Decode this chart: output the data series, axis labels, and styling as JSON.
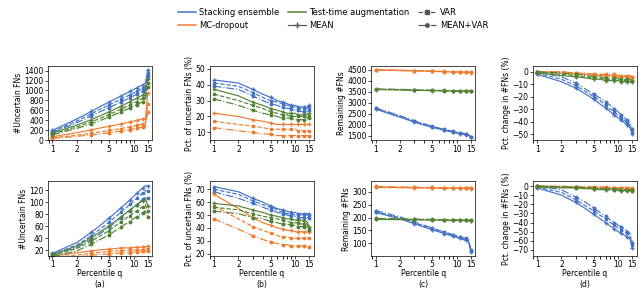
{
  "x": [
    1,
    2,
    3,
    4,
    5,
    6,
    7,
    8,
    9,
    10,
    11,
    12,
    13,
    14,
    15
  ],
  "colors": {
    "blue": "#4472C4",
    "orange": "#ED7D31",
    "green": "#548235"
  },
  "top_a": {
    "ylabel": "#Uncertain FNs",
    "ylim": [
      0,
      1500
    ],
    "yticks": [
      0,
      200,
      400,
      600,
      800,
      1000,
      1200,
      1400
    ],
    "blue_mean": [
      200,
      430,
      580,
      690,
      770,
      835,
      890,
      938,
      980,
      1020,
      1055,
      1085,
      1115,
      1145,
      1420
    ],
    "blue_var": [
      175,
      390,
      530,
      635,
      710,
      773,
      825,
      872,
      913,
      950,
      985,
      1015,
      1043,
      1072,
      1355
    ],
    "blue_meanvar": [
      155,
      355,
      485,
      585,
      658,
      718,
      770,
      815,
      855,
      892,
      925,
      954,
      982,
      1010,
      1285
    ],
    "orange_mean": [
      75,
      155,
      210,
      252,
      282,
      308,
      330,
      350,
      368,
      385,
      400,
      415,
      430,
      445,
      940
    ],
    "orange_var": [
      50,
      105,
      144,
      174,
      198,
      218,
      237,
      254,
      270,
      286,
      300,
      313,
      326,
      339,
      720
    ],
    "orange_meanvar": [
      40,
      80,
      110,
      133,
      153,
      170,
      186,
      201,
      215,
      229,
      242,
      254,
      266,
      278,
      565
    ],
    "green_mean": [
      148,
      305,
      415,
      503,
      572,
      632,
      685,
      732,
      774,
      812,
      847,
      880,
      912,
      943,
      1235
    ],
    "green_var": [
      128,
      270,
      370,
      452,
      518,
      574,
      624,
      668,
      709,
      745,
      779,
      811,
      841,
      871,
      1155
    ],
    "green_meanvar": [
      110,
      240,
      330,
      407,
      470,
      523,
      570,
      612,
      650,
      685,
      717,
      747,
      776,
      804,
      1070
    ]
  },
  "top_b": {
    "ylabel": "Pct. of uncertain FNs (%)",
    "ylim": [
      5,
      52
    ],
    "yticks": [
      10,
      20,
      30,
      40,
      50
    ],
    "blue_mean": [
      43,
      41,
      37,
      34,
      32,
      30,
      29,
      28,
      27,
      27,
      26,
      26,
      26,
      26,
      27
    ],
    "blue_var": [
      41,
      39,
      35,
      32,
      30,
      29,
      28,
      27,
      26,
      26,
      25,
      25,
      25,
      25,
      26
    ],
    "blue_meanvar": [
      39,
      37,
      33,
      30,
      28,
      27,
      26,
      25,
      25,
      24,
      24,
      23,
      23,
      23,
      24
    ],
    "orange_mean": [
      22,
      20,
      18,
      17,
      16,
      15,
      15,
      15,
      15,
      15,
      15,
      15,
      15,
      15,
      15
    ],
    "orange_var": [
      17,
      15,
      14,
      13,
      12,
      12,
      12,
      12,
      12,
      12,
      11,
      11,
      11,
      11,
      11
    ],
    "orange_meanvar": [
      13,
      11,
      10,
      9,
      9,
      8,
      8,
      8,
      8,
      8,
      8,
      8,
      8,
      8,
      8
    ],
    "green_mean": [
      37,
      33,
      29,
      27,
      25,
      24,
      23,
      22,
      22,
      22,
      21,
      21,
      21,
      21,
      22
    ],
    "green_var": [
      34,
      30,
      27,
      25,
      23,
      22,
      21,
      21,
      20,
      20,
      20,
      20,
      20,
      19,
      20
    ],
    "green_meanvar": [
      31,
      27,
      24,
      22,
      21,
      20,
      19,
      19,
      19,
      18,
      18,
      18,
      18,
      18,
      19
    ]
  },
  "top_c": {
    "ylabel": "Remaining #FNs",
    "ylim": [
      1300,
      4700
    ],
    "yticks": [
      1500,
      2000,
      2500,
      3000,
      3500,
      4000,
      4500
    ],
    "blue_mean": [
      2720,
      2350,
      2130,
      1990,
      1890,
      1820,
      1760,
      1710,
      1670,
      1635,
      1608,
      1582,
      1558,
      1535,
      1430
    ],
    "blue_var": [
      2750,
      2390,
      2165,
      2020,
      1915,
      1843,
      1780,
      1730,
      1690,
      1655,
      1628,
      1602,
      1578,
      1555,
      1450
    ],
    "blue_meanvar": [
      2780,
      2420,
      2195,
      2048,
      1940,
      1865,
      1800,
      1750,
      1710,
      1675,
      1648,
      1622,
      1598,
      1575,
      1470
    ],
    "orange_mean": [
      4490,
      4470,
      4455,
      4445,
      4435,
      4427,
      4420,
      4415,
      4410,
      4405,
      4400,
      4396,
      4392,
      4388,
      4384
    ],
    "orange_var": [
      4500,
      4480,
      4465,
      4453,
      4443,
      4435,
      4427,
      4421,
      4416,
      4411,
      4406,
      4402,
      4398,
      4394,
      4390
    ],
    "orange_meanvar": [
      4510,
      4490,
      4473,
      4460,
      4450,
      4440,
      4432,
      4425,
      4420,
      4414,
      4409,
      4405,
      4400,
      4396,
      4392
    ],
    "green_mean": [
      3610,
      3590,
      3575,
      3565,
      3558,
      3552,
      3548,
      3544,
      3540,
      3537,
      3534,
      3532,
      3530,
      3528,
      3526
    ],
    "green_var": [
      3625,
      3605,
      3590,
      3578,
      3570,
      3563,
      3558,
      3553,
      3549,
      3546,
      3543,
      3540,
      3538,
      3536,
      3534
    ],
    "green_meanvar": [
      3640,
      3618,
      3602,
      3590,
      3581,
      3574,
      3568,
      3563,
      3559,
      3555,
      3552,
      3549,
      3547,
      3545,
      3542
    ]
  },
  "top_d": {
    "ylabel": "Pct. change in #FNs (%)",
    "ylim": [
      -55,
      5
    ],
    "yticks": [
      0,
      -10,
      -20,
      -30,
      -40,
      -50
    ],
    "blue_mean": [
      -2,
      -8,
      -13,
      -18,
      -22,
      -26,
      -29,
      -32,
      -35,
      -37,
      -39,
      -41,
      -43,
      -45,
      -50
    ],
    "blue_var": [
      -1,
      -6,
      -11,
      -16,
      -20,
      -23,
      -27,
      -30,
      -32,
      -35,
      -37,
      -39,
      -41,
      -43,
      -48
    ],
    "blue_meanvar": [
      0,
      -4,
      -9,
      -14,
      -18,
      -21,
      -24,
      -27,
      -30,
      -32,
      -35,
      -37,
      -39,
      -41,
      -46
    ],
    "orange_mean": [
      0,
      -1,
      -2,
      -2,
      -3,
      -3,
      -3,
      -3,
      -4,
      -4,
      -4,
      -4,
      -4,
      -4,
      -5
    ],
    "orange_var": [
      0,
      0,
      -1,
      -2,
      -2,
      -2,
      -3,
      -3,
      -3,
      -3,
      -3,
      -3,
      -4,
      -4,
      -4
    ],
    "orange_meanvar": [
      0,
      0,
      -1,
      -1,
      -2,
      -2,
      -2,
      -2,
      -2,
      -3,
      -3,
      -3,
      -3,
      -3,
      -4
    ],
    "green_mean": [
      -1,
      -3,
      -4,
      -5,
      -6,
      -6,
      -7,
      -7,
      -7,
      -7,
      -8,
      -8,
      -8,
      -8,
      -8
    ],
    "green_var": [
      0,
      -2,
      -3,
      -4,
      -5,
      -5,
      -6,
      -6,
      -6,
      -6,
      -7,
      -7,
      -7,
      -7,
      -7
    ],
    "green_meanvar": [
      0,
      -1,
      -2,
      -3,
      -4,
      -4,
      -5,
      -5,
      -5,
      -5,
      -6,
      -6,
      -6,
      -6,
      -7
    ]
  },
  "bot_a": {
    "ylabel": "#Uncertain FNs",
    "ylim": [
      10,
      135
    ],
    "yticks": [
      20,
      40,
      60,
      80,
      100,
      120
    ],
    "blue_mean": [
      15,
      33,
      50,
      63,
      74,
      83,
      91,
      98,
      104,
      110,
      115,
      120,
      124,
      128,
      127
    ],
    "blue_var": [
      13,
      29,
      44,
      57,
      67,
      76,
      84,
      90,
      97,
      102,
      107,
      112,
      116,
      120,
      119
    ],
    "blue_meanvar": [
      11,
      25,
      38,
      49,
      59,
      67,
      74,
      81,
      86,
      92,
      96,
      101,
      105,
      109,
      108
    ],
    "orange_mean": [
      10,
      16,
      19,
      21,
      22,
      23,
      24,
      24,
      24,
      25,
      25,
      25,
      26,
      26,
      27
    ],
    "orange_var": [
      8,
      12,
      15,
      17,
      18,
      19,
      19,
      20,
      20,
      20,
      21,
      21,
      21,
      22,
      22
    ],
    "orange_meanvar": [
      6,
      9,
      12,
      13,
      14,
      15,
      15,
      16,
      16,
      17,
      17,
      17,
      18,
      18,
      18
    ],
    "green_mean": [
      13,
      27,
      41,
      52,
      61,
      69,
      76,
      82,
      87,
      92,
      96,
      100,
      103,
      107,
      94
    ],
    "green_var": [
      11,
      23,
      35,
      45,
      53,
      61,
      67,
      73,
      78,
      82,
      86,
      90,
      93,
      96,
      85
    ],
    "green_meanvar": [
      9,
      19,
      30,
      39,
      46,
      53,
      59,
      64,
      68,
      73,
      76,
      80,
      83,
      86,
      76
    ]
  },
  "bot_b": {
    "ylabel": "Pct. of uncertain FNs (%)",
    "ylim": [
      18,
      76
    ],
    "yticks": [
      20,
      30,
      40,
      50,
      60,
      70
    ],
    "blue_mean": [
      72,
      68,
      63,
      60,
      57,
      55,
      54,
      53,
      52,
      52,
      51,
      51,
      51,
      51,
      51
    ],
    "blue_var": [
      70,
      66,
      61,
      58,
      56,
      54,
      52,
      51,
      51,
      50,
      50,
      50,
      50,
      50,
      50
    ],
    "blue_meanvar": [
      68,
      63,
      59,
      56,
      54,
      52,
      51,
      50,
      49,
      49,
      48,
      48,
      48,
      48,
      48
    ],
    "orange_mean": [
      66,
      55,
      48,
      44,
      42,
      40,
      39,
      38,
      38,
      37,
      37,
      37,
      37,
      37,
      37
    ],
    "orange_var": [
      57,
      47,
      41,
      38,
      36,
      34,
      33,
      33,
      32,
      32,
      32,
      32,
      32,
      32,
      32
    ],
    "orange_meanvar": [
      47,
      39,
      34,
      31,
      29,
      28,
      27,
      27,
      26,
      26,
      26,
      26,
      26,
      26,
      25
    ],
    "green_mean": [
      59,
      57,
      54,
      52,
      50,
      49,
      48,
      47,
      47,
      46,
      46,
      46,
      45,
      45,
      41
    ],
    "green_var": [
      56,
      54,
      51,
      49,
      48,
      47,
      46,
      45,
      44,
      44,
      44,
      43,
      43,
      43,
      39
    ],
    "green_meanvar": [
      53,
      51,
      48,
      47,
      45,
      44,
      43,
      43,
      42,
      42,
      41,
      41,
      41,
      41,
      38
    ]
  },
  "bot_c": {
    "ylabel": "Remaining #FNs",
    "ylim": [
      50,
      340
    ],
    "yticks": [
      100,
      150,
      200,
      250,
      300
    ],
    "blue_mean": [
      220,
      195,
      176,
      163,
      153,
      145,
      138,
      133,
      128,
      123,
      119,
      115,
      112,
      108,
      68
    ],
    "blue_var": [
      223,
      199,
      180,
      167,
      157,
      149,
      142,
      136,
      131,
      127,
      123,
      119,
      116,
      112,
      72
    ],
    "blue_meanvar": [
      227,
      203,
      183,
      170,
      160,
      151,
      145,
      139,
      134,
      130,
      126,
      122,
      119,
      115,
      75
    ],
    "orange_mean": [
      317,
      316,
      315,
      315,
      315,
      314,
      314,
      314,
      314,
      313,
      313,
      313,
      313,
      313,
      312
    ],
    "orange_var": [
      319,
      317,
      317,
      316,
      316,
      315,
      315,
      315,
      315,
      314,
      314,
      314,
      314,
      314,
      313
    ],
    "orange_meanvar": [
      321,
      319,
      318,
      317,
      317,
      316,
      316,
      316,
      316,
      315,
      315,
      315,
      315,
      315,
      314
    ],
    "green_mean": [
      193,
      192,
      191,
      191,
      190,
      190,
      190,
      189,
      189,
      189,
      189,
      189,
      189,
      188,
      188
    ],
    "green_var": [
      195,
      194,
      193,
      192,
      192,
      192,
      191,
      191,
      191,
      190,
      190,
      190,
      190,
      190,
      189
    ],
    "green_meanvar": [
      197,
      195,
      194,
      194,
      193,
      193,
      192,
      192,
      192,
      191,
      191,
      191,
      191,
      190,
      190
    ]
  },
  "bot_d": {
    "ylabel": "Pct. change in #FNs (%)",
    "ylim": [
      -77,
      5
    ],
    "yticks": [
      0,
      -10,
      -20,
      -30,
      -40,
      -50,
      -60,
      -70
    ],
    "blue_mean": [
      -2,
      -10,
      -18,
      -25,
      -31,
      -36,
      -40,
      -44,
      -47,
      -50,
      -52,
      -54,
      -56,
      -58,
      -68
    ],
    "blue_var": [
      -1,
      -7,
      -15,
      -22,
      -27,
      -32,
      -36,
      -40,
      -43,
      -46,
      -48,
      -50,
      -52,
      -55,
      -65
    ],
    "blue_meanvar": [
      0,
      -4,
      -12,
      -18,
      -24,
      -29,
      -33,
      -37,
      -40,
      -43,
      -45,
      -47,
      -50,
      -52,
      -62
    ],
    "orange_mean": [
      -1,
      -1,
      -1,
      -2,
      -2,
      -2,
      -2,
      -2,
      -2,
      -2,
      -2,
      -2,
      -3,
      -3,
      -3
    ],
    "orange_var": [
      0,
      -1,
      -1,
      -1,
      -1,
      -1,
      -2,
      -2,
      -2,
      -2,
      -2,
      -2,
      -2,
      -2,
      -3
    ],
    "orange_meanvar": [
      0,
      0,
      -1,
      -1,
      -1,
      -1,
      -1,
      -1,
      -2,
      -2,
      -2,
      -2,
      -2,
      -2,
      -2
    ],
    "green_mean": [
      -1,
      -2,
      -2,
      -3,
      -3,
      -4,
      -4,
      -4,
      -4,
      -5,
      -5,
      -5,
      -5,
      -5,
      -5
    ],
    "green_var": [
      0,
      -1,
      -2,
      -2,
      -3,
      -3,
      -3,
      -3,
      -4,
      -4,
      -4,
      -4,
      -4,
      -4,
      -5
    ],
    "green_meanvar": [
      0,
      -1,
      -1,
      -2,
      -2,
      -3,
      -3,
      -3,
      -3,
      -3,
      -4,
      -4,
      -4,
      -4,
      -4
    ]
  },
  "xticks": [
    1,
    2,
    5,
    10,
    15
  ],
  "xlabel": "Percentile q",
  "subplot_labels": [
    "(a)",
    "(b)",
    "(c)",
    "(d)"
  ],
  "legend_row1": [
    "Stacking ensemble",
    "MC-dropout",
    "Test-time augmentation"
  ],
  "legend_row2": [
    "MEAN",
    "VAR",
    "MEAN+VAR"
  ]
}
